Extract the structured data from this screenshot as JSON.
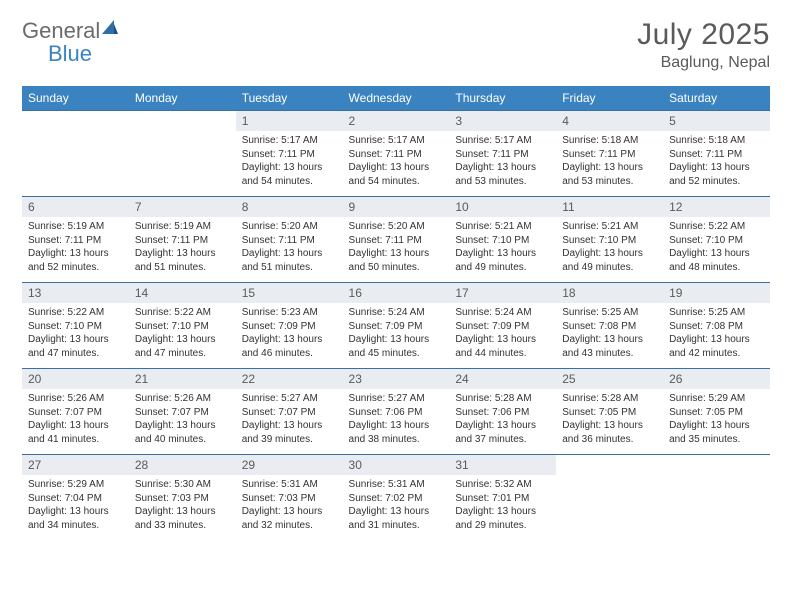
{
  "logo": {
    "text1": "General",
    "text2": "Blue"
  },
  "title": "July 2025",
  "location": "Baglung, Nepal",
  "colors": {
    "header_bg": "#3b83c0",
    "header_fg": "#ffffff",
    "daynum_bg": "#e9edf1",
    "rule": "#3b6fa0",
    "title_color": "#5a5a5a"
  },
  "dow": [
    "Sunday",
    "Monday",
    "Tuesday",
    "Wednesday",
    "Thursday",
    "Friday",
    "Saturday"
  ],
  "weeks": [
    [
      null,
      null,
      {
        "n": "1",
        "sr": "Sunrise: 5:17 AM",
        "ss": "Sunset: 7:11 PM",
        "dl": "Daylight: 13 hours and 54 minutes."
      },
      {
        "n": "2",
        "sr": "Sunrise: 5:17 AM",
        "ss": "Sunset: 7:11 PM",
        "dl": "Daylight: 13 hours and 54 minutes."
      },
      {
        "n": "3",
        "sr": "Sunrise: 5:17 AM",
        "ss": "Sunset: 7:11 PM",
        "dl": "Daylight: 13 hours and 53 minutes."
      },
      {
        "n": "4",
        "sr": "Sunrise: 5:18 AM",
        "ss": "Sunset: 7:11 PM",
        "dl": "Daylight: 13 hours and 53 minutes."
      },
      {
        "n": "5",
        "sr": "Sunrise: 5:18 AM",
        "ss": "Sunset: 7:11 PM",
        "dl": "Daylight: 13 hours and 52 minutes."
      }
    ],
    [
      {
        "n": "6",
        "sr": "Sunrise: 5:19 AM",
        "ss": "Sunset: 7:11 PM",
        "dl": "Daylight: 13 hours and 52 minutes."
      },
      {
        "n": "7",
        "sr": "Sunrise: 5:19 AM",
        "ss": "Sunset: 7:11 PM",
        "dl": "Daylight: 13 hours and 51 minutes."
      },
      {
        "n": "8",
        "sr": "Sunrise: 5:20 AM",
        "ss": "Sunset: 7:11 PM",
        "dl": "Daylight: 13 hours and 51 minutes."
      },
      {
        "n": "9",
        "sr": "Sunrise: 5:20 AM",
        "ss": "Sunset: 7:11 PM",
        "dl": "Daylight: 13 hours and 50 minutes."
      },
      {
        "n": "10",
        "sr": "Sunrise: 5:21 AM",
        "ss": "Sunset: 7:10 PM",
        "dl": "Daylight: 13 hours and 49 minutes."
      },
      {
        "n": "11",
        "sr": "Sunrise: 5:21 AM",
        "ss": "Sunset: 7:10 PM",
        "dl": "Daylight: 13 hours and 49 minutes."
      },
      {
        "n": "12",
        "sr": "Sunrise: 5:22 AM",
        "ss": "Sunset: 7:10 PM",
        "dl": "Daylight: 13 hours and 48 minutes."
      }
    ],
    [
      {
        "n": "13",
        "sr": "Sunrise: 5:22 AM",
        "ss": "Sunset: 7:10 PM",
        "dl": "Daylight: 13 hours and 47 minutes."
      },
      {
        "n": "14",
        "sr": "Sunrise: 5:22 AM",
        "ss": "Sunset: 7:10 PM",
        "dl": "Daylight: 13 hours and 47 minutes."
      },
      {
        "n": "15",
        "sr": "Sunrise: 5:23 AM",
        "ss": "Sunset: 7:09 PM",
        "dl": "Daylight: 13 hours and 46 minutes."
      },
      {
        "n": "16",
        "sr": "Sunrise: 5:24 AM",
        "ss": "Sunset: 7:09 PM",
        "dl": "Daylight: 13 hours and 45 minutes."
      },
      {
        "n": "17",
        "sr": "Sunrise: 5:24 AM",
        "ss": "Sunset: 7:09 PM",
        "dl": "Daylight: 13 hours and 44 minutes."
      },
      {
        "n": "18",
        "sr": "Sunrise: 5:25 AM",
        "ss": "Sunset: 7:08 PM",
        "dl": "Daylight: 13 hours and 43 minutes."
      },
      {
        "n": "19",
        "sr": "Sunrise: 5:25 AM",
        "ss": "Sunset: 7:08 PM",
        "dl": "Daylight: 13 hours and 42 minutes."
      }
    ],
    [
      {
        "n": "20",
        "sr": "Sunrise: 5:26 AM",
        "ss": "Sunset: 7:07 PM",
        "dl": "Daylight: 13 hours and 41 minutes."
      },
      {
        "n": "21",
        "sr": "Sunrise: 5:26 AM",
        "ss": "Sunset: 7:07 PM",
        "dl": "Daylight: 13 hours and 40 minutes."
      },
      {
        "n": "22",
        "sr": "Sunrise: 5:27 AM",
        "ss": "Sunset: 7:07 PM",
        "dl": "Daylight: 13 hours and 39 minutes."
      },
      {
        "n": "23",
        "sr": "Sunrise: 5:27 AM",
        "ss": "Sunset: 7:06 PM",
        "dl": "Daylight: 13 hours and 38 minutes."
      },
      {
        "n": "24",
        "sr": "Sunrise: 5:28 AM",
        "ss": "Sunset: 7:06 PM",
        "dl": "Daylight: 13 hours and 37 minutes."
      },
      {
        "n": "25",
        "sr": "Sunrise: 5:28 AM",
        "ss": "Sunset: 7:05 PM",
        "dl": "Daylight: 13 hours and 36 minutes."
      },
      {
        "n": "26",
        "sr": "Sunrise: 5:29 AM",
        "ss": "Sunset: 7:05 PM",
        "dl": "Daylight: 13 hours and 35 minutes."
      }
    ],
    [
      {
        "n": "27",
        "sr": "Sunrise: 5:29 AM",
        "ss": "Sunset: 7:04 PM",
        "dl": "Daylight: 13 hours and 34 minutes."
      },
      {
        "n": "28",
        "sr": "Sunrise: 5:30 AM",
        "ss": "Sunset: 7:03 PM",
        "dl": "Daylight: 13 hours and 33 minutes."
      },
      {
        "n": "29",
        "sr": "Sunrise: 5:31 AM",
        "ss": "Sunset: 7:03 PM",
        "dl": "Daylight: 13 hours and 32 minutes."
      },
      {
        "n": "30",
        "sr": "Sunrise: 5:31 AM",
        "ss": "Sunset: 7:02 PM",
        "dl": "Daylight: 13 hours and 31 minutes."
      },
      {
        "n": "31",
        "sr": "Sunrise: 5:32 AM",
        "ss": "Sunset: 7:01 PM",
        "dl": "Daylight: 13 hours and 29 minutes."
      },
      null,
      null
    ]
  ]
}
